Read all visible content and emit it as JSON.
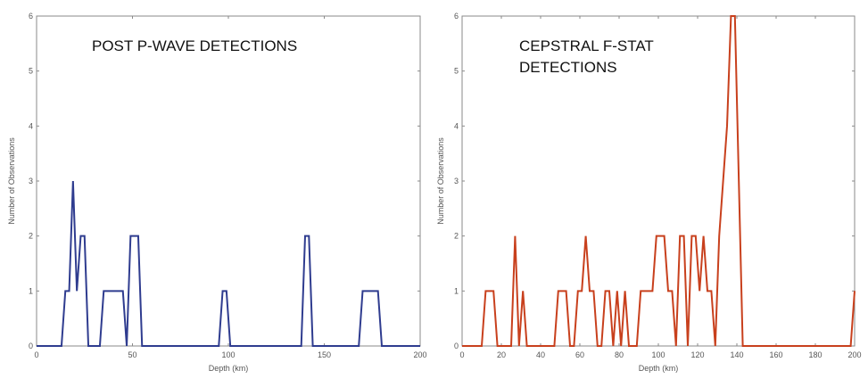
{
  "chart_data": [
    {
      "type": "line",
      "title_lines": [
        "POST P-WAVE DETECTIONS"
      ],
      "xlabel": "Depth (km)",
      "ylabel": "Number of Observations",
      "xlim": [
        0,
        200
      ],
      "ylim": [
        0,
        6
      ],
      "xticks": [
        0,
        50,
        100,
        150,
        200
      ],
      "yticks": [
        0,
        1,
        2,
        3,
        4,
        5,
        6
      ],
      "grid": false,
      "series": [
        {
          "color": "#2f3c8f",
          "x": [
            0,
            13,
            15,
            17,
            19,
            21,
            23,
            25,
            27,
            29,
            33,
            35,
            45,
            47,
            49,
            51,
            53,
            55,
            95,
            97,
            99,
            101,
            138,
            140,
            142,
            144,
            168,
            170,
            178,
            180,
            200
          ],
          "y": [
            0,
            0,
            1,
            1,
            3,
            1,
            2,
            2,
            0,
            0,
            0,
            1,
            1,
            0,
            2,
            2,
            2,
            0,
            0,
            1,
            1,
            0,
            0,
            2,
            2,
            0,
            0,
            1,
            1,
            0,
            0
          ]
        }
      ]
    },
    {
      "type": "line",
      "title_lines": [
        "CEPSTRAL F-STAT",
        "DETECTIONS"
      ],
      "xlabel": "Depth (km)",
      "ylabel": "Number of Observations",
      "xlim": [
        0,
        200
      ],
      "ylim": [
        0,
        6
      ],
      "xticks": [
        0,
        20,
        40,
        60,
        80,
        100,
        120,
        140,
        160,
        180,
        200
      ],
      "yticks": [
        0,
        1,
        2,
        3,
        4,
        5,
        6
      ],
      "grid": false,
      "series": [
        {
          "color": "#c8401d",
          "x": [
            0,
            10,
            12,
            16,
            18,
            25,
            27,
            29,
            31,
            33,
            35,
            47,
            49,
            53,
            55,
            57,
            59,
            61,
            63,
            65,
            67,
            69,
            71,
            73,
            75,
            77,
            79,
            81,
            83,
            85,
            87,
            89,
            91,
            93,
            95,
            97,
            99,
            103,
            105,
            107,
            109,
            111,
            113,
            115,
            117,
            119,
            121,
            123,
            125,
            127,
            129,
            131,
            133,
            135,
            137,
            139,
            141,
            143,
            145,
            147,
            150,
            198,
            200
          ],
          "y": [
            0,
            0,
            1,
            1,
            0,
            0,
            2,
            0,
            1,
            0,
            0,
            0,
            1,
            1,
            0,
            0,
            1,
            1,
            2,
            1,
            1,
            0,
            0,
            1,
            1,
            0,
            1,
            0,
            1,
            0,
            0,
            0,
            1,
            1,
            1,
            1,
            2,
            2,
            1,
            1,
            0,
            2,
            2,
            0,
            2,
            2,
            1,
            2,
            1,
            1,
            0,
            2,
            3,
            4,
            6,
            6,
            3,
            0,
            0,
            0,
            0,
            0,
            1
          ]
        }
      ]
    }
  ]
}
